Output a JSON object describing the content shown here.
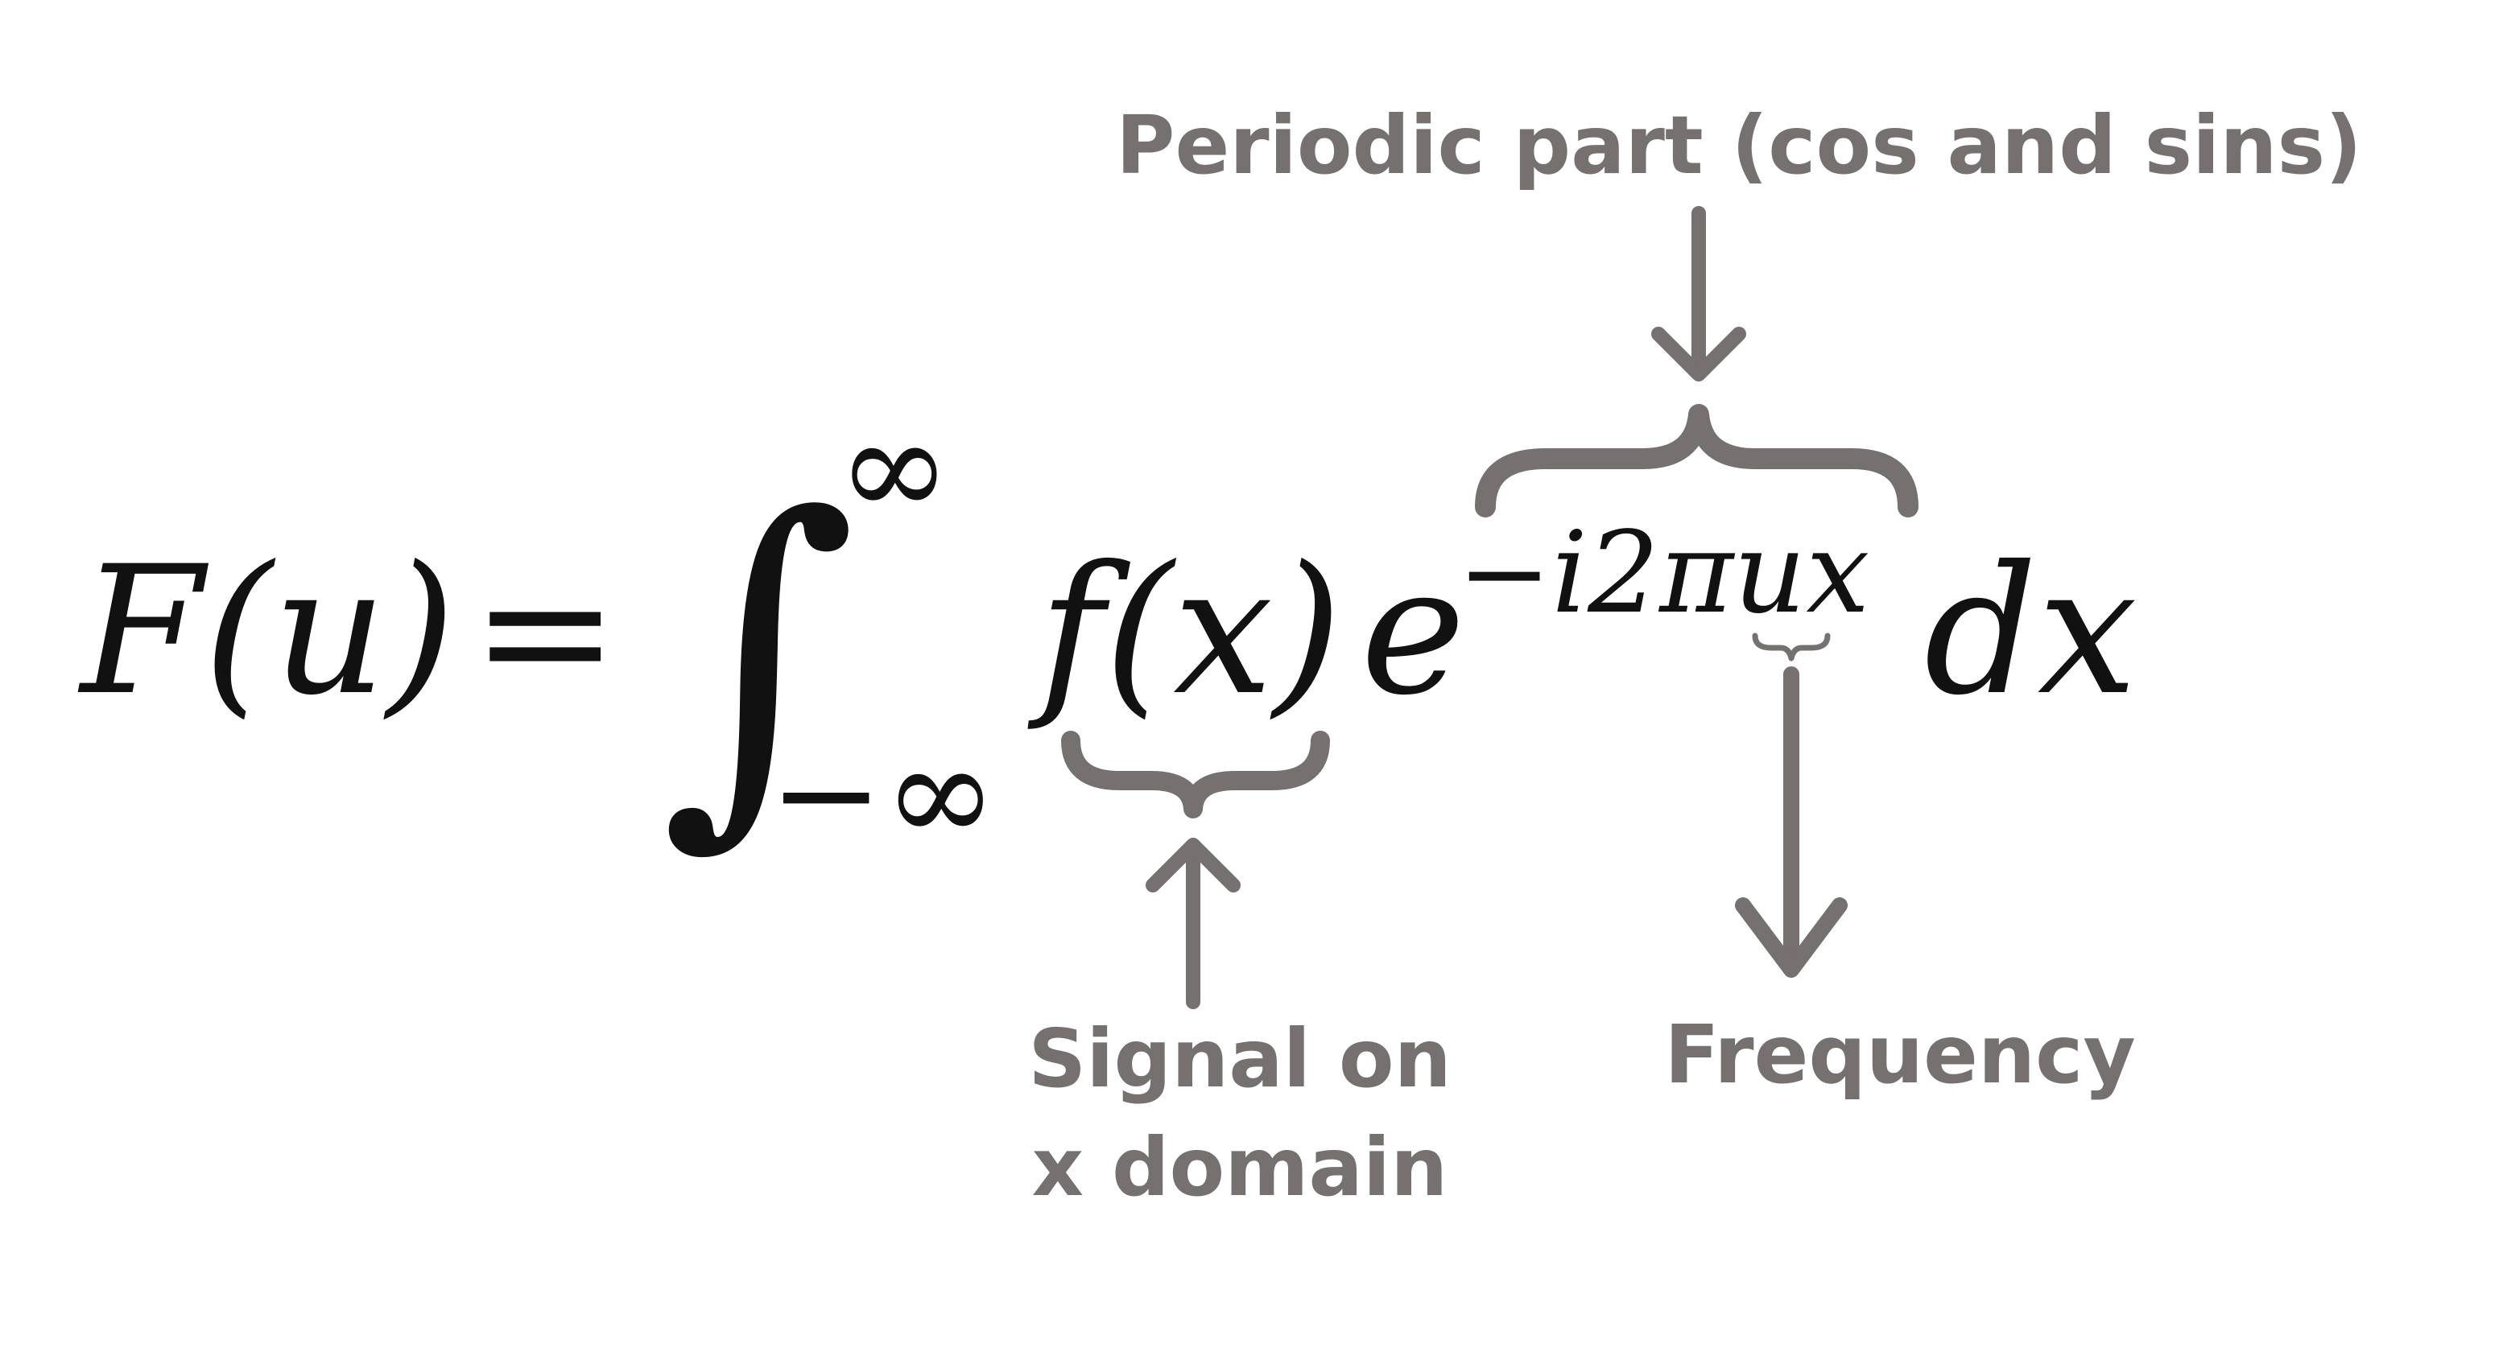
{
  "equation": {
    "lhs": "F(u)",
    "equals": "=",
    "integral": "∫",
    "upper_limit": "∞",
    "lower_limit": "−∞",
    "signal": "f(x)",
    "base": "e",
    "exponent": "−i2πux",
    "differential": "dx"
  },
  "annotations": {
    "periodic": "Periodic part (cos and sins)",
    "signal_line1": "Signal on",
    "signal_line2": "x domain",
    "frequency": "Frequency"
  },
  "colors": {
    "annotation": "#757171",
    "equation": "#111111",
    "background": "#ffffff"
  }
}
